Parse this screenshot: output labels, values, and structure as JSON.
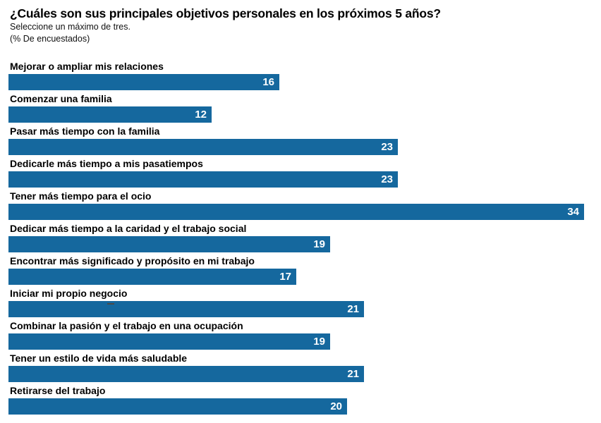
{
  "header": {
    "title": "¿Cuáles son sus principales objetivos personales en los próximos 5 años?",
    "subtitle": "Seleccione un máximo de tres.",
    "unit_note": "(% De encuestados)"
  },
  "colors": {
    "bar": "#15689E",
    "value_text": "#FFFFFF",
    "label_text": "#000000",
    "background": "#FFFFFF"
  },
  "chart_data": {
    "type": "bar",
    "orientation": "horizontal",
    "title": "¿Cuáles son sus principales objetivos personales en los próximos 5 años?",
    "subtitle": "Seleccione un máximo de tres.",
    "unit": "(% De encuestados)",
    "xlabel": "",
    "ylabel": "",
    "xlim": [
      0,
      34
    ],
    "grid": false,
    "legend": false,
    "value_labels_shown": true,
    "categories": [
      "Mejorar o ampliar mis relaciones",
      "Comenzar una familia",
      "Pasar más tiempo con la familia",
      "Dedicarle más tiempo a mis pasatiempos",
      "Tener más tiempo para el ocio",
      "Dedicar más tiempo a la caridad y el trabajo social",
      "Encontrar más significado y propósito en mi trabajo",
      "Iniciar mi propio negocio",
      "Combinar la pasión y el trabajo en una ocupación",
      "Tener un estilo de vida más saludable",
      "Retirarse del trabajo"
    ],
    "values": [
      16,
      12,
      23,
      23,
      34,
      19,
      17,
      21,
      19,
      21,
      20
    ]
  }
}
